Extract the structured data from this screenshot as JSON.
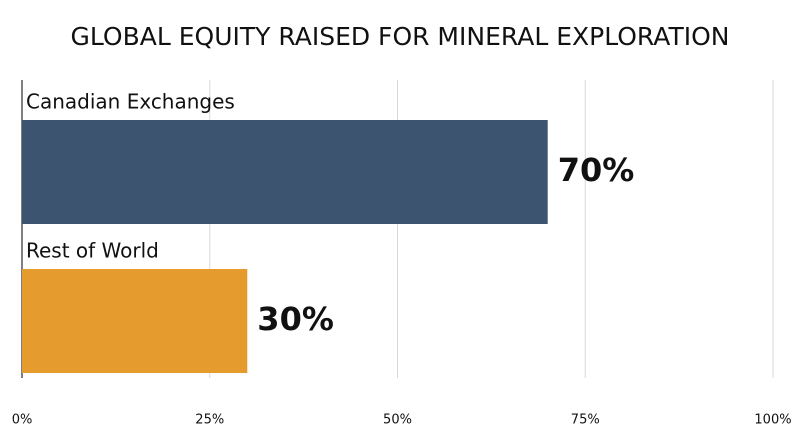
{
  "chart_data": {
    "type": "bar",
    "orientation": "horizontal",
    "title": "GLOBAL EQUITY RAISED FOR MINERAL EXPLORATION",
    "categories": [
      "Canadian Exchanges",
      "Rest of World"
    ],
    "values": [
      70,
      30
    ],
    "value_labels": [
      "70%",
      "30%"
    ],
    "colors": [
      "#3d5470",
      "#e69b2e"
    ],
    "xlim": [
      0,
      100
    ],
    "xticks": [
      {
        "value": 0,
        "label": "0%"
      },
      {
        "value": 25,
        "label": "25%"
      },
      {
        "value": 50,
        "label": "50%"
      },
      {
        "value": 75,
        "label": "75%"
      },
      {
        "value": 100,
        "label": "100%"
      }
    ],
    "grid": true
  }
}
